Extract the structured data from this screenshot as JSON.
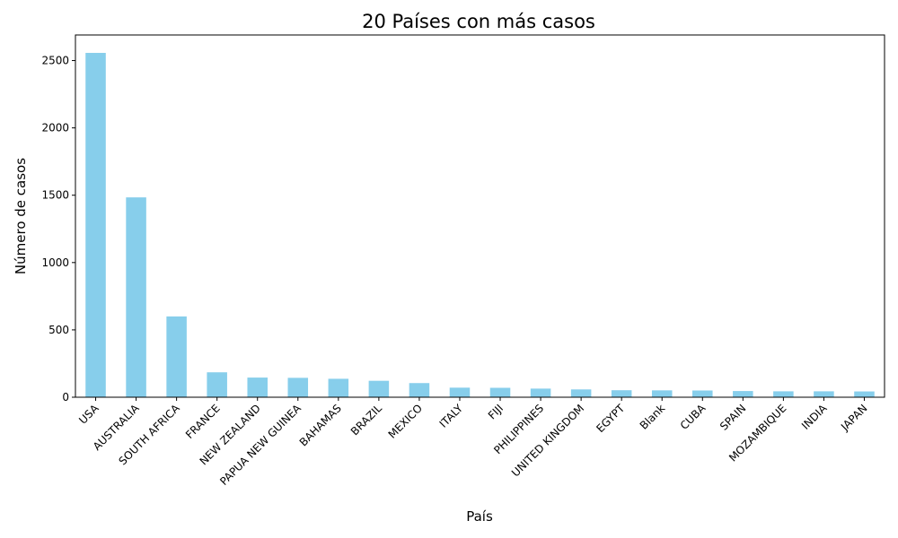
{
  "chart_data": {
    "type": "bar",
    "title": "20 Países con más casos",
    "xlabel": "País",
    "ylabel": "Número de casos",
    "ylim": [
      0,
      2690
    ],
    "yticks": [
      0,
      500,
      1000,
      1500,
      2000,
      2500
    ],
    "grid": false,
    "legend": "none",
    "bar_color": "#87CEEB",
    "categories": [
      "USA",
      "AUSTRALIA",
      "SOUTH AFRICA",
      "FRANCE",
      "NEW ZEALAND",
      "PAPUA NEW GUINEA",
      "BAHAMAS",
      "BRAZIL",
      "MEXICO",
      "ITALY",
      "FIJI",
      "PHILIPPINES",
      "UNITED KINGDOM",
      "EGYPT",
      "Blank",
      "CUBA",
      "SPAIN",
      "MOZAMBIQUE",
      "INDIA",
      "JAPAN"
    ],
    "values": [
      2557,
      1484,
      600,
      185,
      146,
      144,
      137,
      122,
      105,
      71,
      70,
      64,
      58,
      52,
      51,
      50,
      46,
      44,
      44,
      43
    ]
  }
}
